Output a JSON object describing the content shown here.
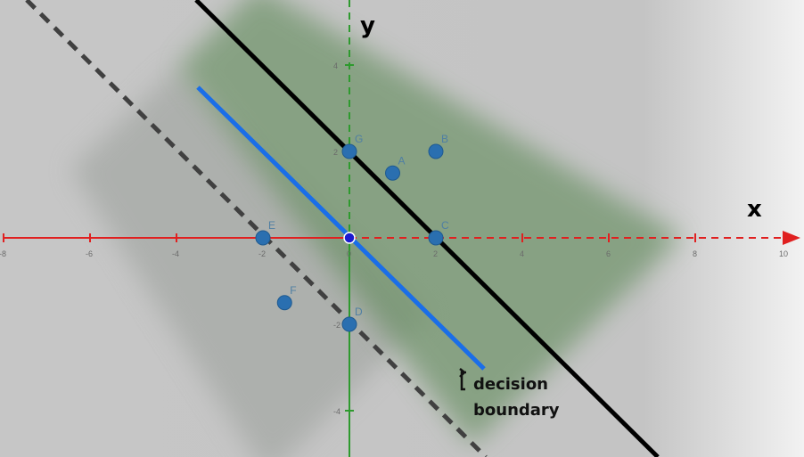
{
  "axes": {
    "x_label": "x",
    "y_label": "y",
    "x_ticks": [
      "-8",
      "-6",
      "-4",
      "-2",
      "0",
      "2",
      "4",
      "6",
      "8",
      "10"
    ],
    "y_ticks": [
      "4",
      "2",
      "-2",
      "-4"
    ]
  },
  "points": [
    {
      "label": "G",
      "x": 0,
      "y": 2
    },
    {
      "label": "A",
      "x": 1,
      "y": 1.5
    },
    {
      "label": "B",
      "x": 2,
      "y": 2
    },
    {
      "label": "C",
      "x": 2,
      "y": 0
    },
    {
      "label": "E",
      "x": -2,
      "y": 0
    },
    {
      "label": "F",
      "x": -1.5,
      "y": -1.5
    },
    {
      "label": "D",
      "x": 0,
      "y": -2
    },
    {
      "label": "",
      "x": 0,
      "y": 0
    }
  ],
  "annotation": {
    "line1": "decision",
    "line2": "boundary"
  },
  "colors": {
    "x_axis": "#e02020",
    "y_axis": "#2e9a2e",
    "decision_line": "#1a6ee8",
    "margin_line": "#000000",
    "dashed_line": "#404040",
    "point": "#2a6fb0"
  }
}
